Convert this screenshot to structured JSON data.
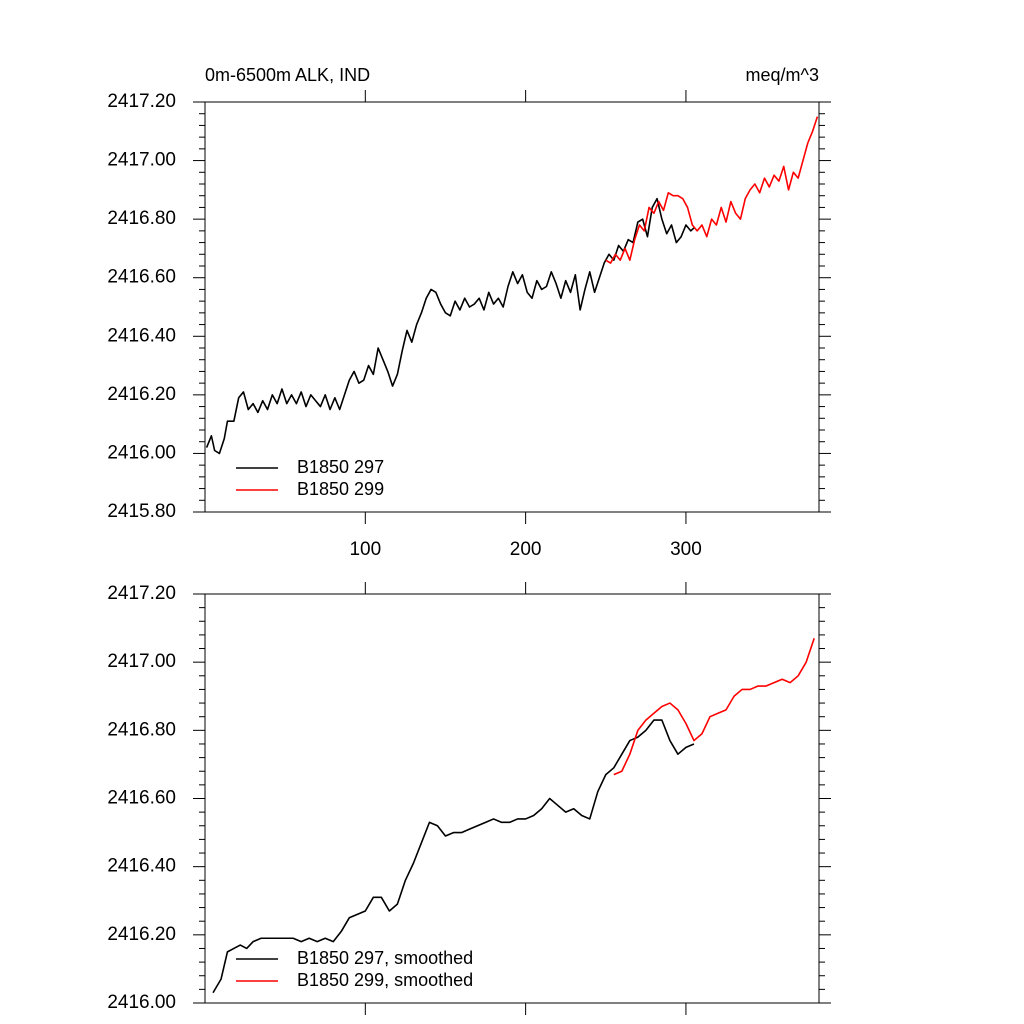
{
  "chart_data": [
    {
      "type": "line",
      "title": "0m-6500m ALK, IND",
      "subtitle": "meq/m^3",
      "xlim": [
        0,
        383
      ],
      "xticks": [
        100,
        200,
        300
      ],
      "show_xtick_labels": true,
      "ylim": [
        2415.8,
        2417.2
      ],
      "yticks": [
        {
          "value": 2415.8,
          "label": "2415.80"
        },
        {
          "value": 2416.0,
          "label": "2416.00"
        },
        {
          "value": 2416.2,
          "label": "2416.20"
        },
        {
          "value": 2416.4,
          "label": "2416.40"
        },
        {
          "value": 2416.6,
          "label": "2416.60"
        },
        {
          "value": 2416.8,
          "label": "2416.80"
        },
        {
          "value": 2417.0,
          "label": "2417.00"
        },
        {
          "value": 2417.2,
          "label": "2417.20"
        }
      ],
      "legend": "lower left",
      "series": [
        {
          "name": "B1850 297",
          "color": "#000000",
          "x": [
            1,
            4,
            6,
            9,
            12,
            14,
            18,
            21,
            24,
            27,
            30,
            33,
            36,
            39,
            42,
            45,
            48,
            51,
            54,
            57,
            60,
            63,
            66,
            69,
            72,
            75,
            78,
            81,
            84,
            87,
            90,
            93,
            96,
            99,
            102,
            105,
            108,
            111,
            114,
            117,
            120,
            123,
            126,
            129,
            132,
            135,
            138,
            141,
            144,
            147,
            150,
            153,
            156,
            159,
            162,
            165,
            168,
            171,
            174,
            177,
            180,
            183,
            186,
            189,
            192,
            195,
            198,
            201,
            204,
            207,
            210,
            213,
            216,
            219,
            222,
            225,
            228,
            231,
            234,
            237,
            240,
            243,
            246,
            249,
            252,
            255,
            258,
            261,
            264,
            267,
            270,
            273,
            276,
            279,
            282,
            285,
            288,
            291,
            294,
            297,
            300,
            303,
            305
          ],
          "values": [
            2416.02,
            2416.06,
            2416.01,
            2416.0,
            2416.05,
            2416.11,
            2416.11,
            2416.19,
            2416.21,
            2416.15,
            2416.17,
            2416.14,
            2416.18,
            2416.15,
            2416.2,
            2416.17,
            2416.22,
            2416.17,
            2416.2,
            2416.17,
            2416.21,
            2416.16,
            2416.2,
            2416.18,
            2416.16,
            2416.2,
            2416.15,
            2416.19,
            2416.15,
            2416.2,
            2416.25,
            2416.28,
            2416.24,
            2416.25,
            2416.3,
            2416.27,
            2416.36,
            2416.32,
            2416.28,
            2416.23,
            2416.27,
            2416.35,
            2416.42,
            2416.38,
            2416.44,
            2416.48,
            2416.53,
            2416.56,
            2416.55,
            2416.51,
            2416.48,
            2416.47,
            2416.52,
            2416.49,
            2416.53,
            2416.5,
            2416.51,
            2416.53,
            2416.49,
            2416.55,
            2416.51,
            2416.53,
            2416.5,
            2416.57,
            2416.62,
            2416.58,
            2416.61,
            2416.55,
            2416.53,
            2416.59,
            2416.56,
            2416.57,
            2416.62,
            2416.58,
            2416.53,
            2416.59,
            2416.55,
            2416.61,
            2416.49,
            2416.56,
            2416.62,
            2416.55,
            2416.6,
            2416.65,
            2416.68,
            2416.66,
            2416.71,
            2416.69,
            2416.73,
            2416.72,
            2416.79,
            2416.8,
            2416.74,
            2416.84,
            2416.87,
            2416.8,
            2416.75,
            2416.78,
            2416.72,
            2416.74,
            2416.78,
            2416.76,
            2416.77
          ]
        },
        {
          "name": "B1850 299",
          "color": "#ff0000",
          "x": [
            250,
            253,
            256,
            259,
            262,
            265,
            268,
            271,
            274,
            277,
            280,
            283,
            286,
            289,
            292,
            295,
            298,
            301,
            304,
            307,
            310,
            313,
            316,
            319,
            322,
            325,
            328,
            331,
            334,
            337,
            340,
            343,
            346,
            349,
            352,
            355,
            358,
            361,
            364,
            367,
            370,
            373,
            376,
            379,
            382
          ],
          "values": [
            2416.66,
            2416.65,
            2416.68,
            2416.66,
            2416.7,
            2416.66,
            2416.73,
            2416.78,
            2416.76,
            2416.84,
            2416.82,
            2416.86,
            2416.83,
            2416.89,
            2416.88,
            2416.88,
            2416.87,
            2416.84,
            2416.78,
            2416.76,
            2416.78,
            2416.74,
            2416.8,
            2416.78,
            2416.84,
            2416.79,
            2416.86,
            2416.82,
            2416.8,
            2416.87,
            2416.9,
            2416.92,
            2416.89,
            2416.94,
            2416.91,
            2416.95,
            2416.93,
            2416.98,
            2416.9,
            2416.96,
            2416.94,
            2417.0,
            2417.06,
            2417.1,
            2417.15
          ]
        }
      ]
    },
    {
      "type": "line",
      "xlim": [
        0,
        383
      ],
      "xticks": [
        100,
        200,
        300
      ],
      "show_xtick_labels": false,
      "ylim": [
        2416.0,
        2417.2
      ],
      "yticks": [
        {
          "value": 2416.0,
          "label": "2416.00"
        },
        {
          "value": 2416.2,
          "label": "2416.20"
        },
        {
          "value": 2416.4,
          "label": "2416.40"
        },
        {
          "value": 2416.6,
          "label": "2416.60"
        },
        {
          "value": 2416.8,
          "label": "2416.80"
        },
        {
          "value": 2417.0,
          "label": "2417.00"
        },
        {
          "value": 2417.2,
          "label": "2417.20"
        }
      ],
      "legend": "lower left",
      "series": [
        {
          "name": "B1850 297, smoothed",
          "color": "#000000",
          "x": [
            5,
            10,
            14,
            18,
            22,
            26,
            30,
            35,
            40,
            45,
            50,
            55,
            60,
            65,
            70,
            75,
            80,
            85,
            90,
            95,
            100,
            105,
            110,
            115,
            120,
            125,
            130,
            135,
            140,
            145,
            150,
            155,
            160,
            165,
            170,
            175,
            180,
            185,
            190,
            195,
            200,
            205,
            210,
            215,
            220,
            225,
            230,
            235,
            240,
            245,
            250,
            255,
            260,
            265,
            270,
            275,
            280,
            285,
            290,
            295,
            300,
            305
          ],
          "values": [
            2416.03,
            2416.07,
            2416.15,
            2416.16,
            2416.17,
            2416.16,
            2416.18,
            2416.19,
            2416.19,
            2416.19,
            2416.19,
            2416.19,
            2416.18,
            2416.19,
            2416.18,
            2416.19,
            2416.18,
            2416.21,
            2416.25,
            2416.26,
            2416.27,
            2416.31,
            2416.31,
            2416.27,
            2416.29,
            2416.36,
            2416.41,
            2416.47,
            2416.53,
            2416.52,
            2416.49,
            2416.5,
            2416.5,
            2416.51,
            2416.52,
            2416.53,
            2416.54,
            2416.53,
            2416.53,
            2416.54,
            2416.54,
            2416.55,
            2416.57,
            2416.6,
            2416.58,
            2416.56,
            2416.57,
            2416.55,
            2416.54,
            2416.62,
            2416.67,
            2416.69,
            2416.73,
            2416.77,
            2416.78,
            2416.8,
            2416.83,
            2416.83,
            2416.77,
            2416.73,
            2416.75,
            2416.76
          ]
        },
        {
          "name": "B1850 299, smoothed",
          "color": "#ff0000",
          "x": [
            255,
            260,
            265,
            270,
            275,
            280,
            285,
            290,
            295,
            300,
            305,
            310,
            315,
            320,
            325,
            330,
            335,
            340,
            345,
            350,
            355,
            360,
            365,
            370,
            375,
            380
          ],
          "values": [
            2416.67,
            2416.68,
            2416.73,
            2416.8,
            2416.83,
            2416.85,
            2416.87,
            2416.88,
            2416.86,
            2416.82,
            2416.77,
            2416.79,
            2416.84,
            2416.85,
            2416.86,
            2416.9,
            2416.92,
            2416.92,
            2416.93,
            2416.93,
            2416.94,
            2416.95,
            2416.94,
            2416.96,
            2417.0,
            2417.07
          ]
        }
      ]
    }
  ]
}
